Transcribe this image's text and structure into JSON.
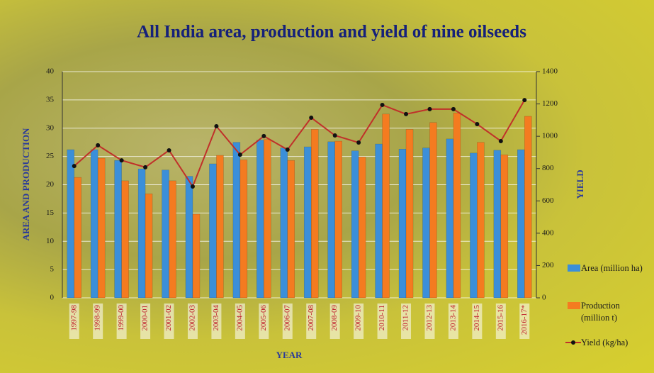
{
  "chart_data": {
    "type": "bar_line",
    "title": "All India area, production and yield of nine oilseeds",
    "y_label": "AREA AND PRODUCTION",
    "y2_label": "YIELD",
    "x_label": "YEAR",
    "categories": [
      "1997-98",
      "1998-99",
      "1999-00",
      "2000-01",
      "2001-02",
      "2002-03",
      "2003-04",
      "2004-05",
      "2005-06",
      "2006-07",
      "2007-08",
      "2008-09",
      "2009-10",
      "2010-11",
      "2011-12",
      "2012-13",
      "2013-14",
      "2014-15",
      "2015-16",
      "2016-17*"
    ],
    "series": [
      {
        "name": "Area (million ha)",
        "type": "bar",
        "color": "#3b8fd9",
        "values": [
          26.2,
          26.2,
          24.3,
          22.8,
          22.6,
          21.5,
          23.7,
          27.5,
          27.9,
          26.5,
          26.7,
          27.6,
          26.0,
          27.2,
          26.3,
          26.5,
          28.1,
          25.6,
          26.1,
          26.2
        ]
      },
      {
        "name": "Production (million t)",
        "type": "bar",
        "color": "#f47b20",
        "values": [
          21.3,
          24.7,
          20.7,
          18.4,
          20.7,
          14.8,
          25.2,
          24.4,
          28.0,
          24.3,
          29.8,
          27.7,
          24.9,
          32.5,
          29.8,
          31.0,
          32.7,
          27.5,
          25.3,
          32.1
        ]
      },
      {
        "name": "Yield (kg/ha)",
        "type": "line",
        "axis": "y2",
        "color": "#c0302a",
        "values": [
          816,
          944,
          851,
          808,
          913,
          689,
          1062,
          886,
          1001,
          917,
          1115,
          1005,
          961,
          1194,
          1137,
          1168,
          1168,
          1075,
          970,
          1224
        ]
      }
    ],
    "ylim": [
      0,
      40
    ],
    "yticks": [
      0,
      5,
      10,
      15,
      20,
      25,
      30,
      35,
      40
    ],
    "y2lim": [
      0,
      1400
    ],
    "y2ticks": [
      0,
      200,
      400,
      600,
      800,
      1000,
      1200,
      1400
    ],
    "grid": true,
    "legend": "right"
  }
}
